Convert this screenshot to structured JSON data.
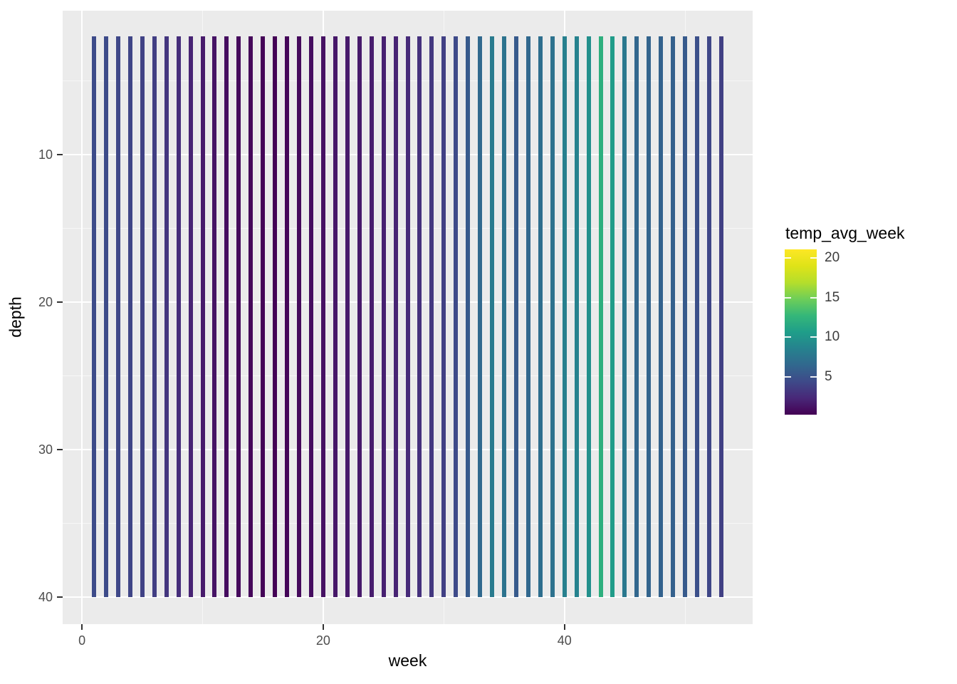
{
  "figure": {
    "background": "#ffffff",
    "panel_background": "#ebebeb",
    "gridline_color": "#ffffff",
    "tick_mark_color": "#333333",
    "tick_label_color": "#4d4d4d",
    "axis_title_color": "#000000"
  },
  "chart_data": {
    "type": "bar",
    "subtype": "vertical-segments-colored-by-value",
    "title": "",
    "xlabel": "week",
    "ylabel": "depth",
    "x_ticks": [
      0,
      20,
      40
    ],
    "x_minor_ticks": [
      10,
      30,
      50
    ],
    "y_ticks": [
      10,
      20,
      30,
      40
    ],
    "y_minor_ticks": [
      5,
      15,
      25,
      35
    ],
    "x_range": [
      -1.6,
      55.6
    ],
    "y_range": [
      0.24,
      41.84
    ],
    "y_reversed": true,
    "grid": "on",
    "segment_depth_top": 2,
    "segment_depth_bottom": 40,
    "weeks": [
      1,
      2,
      3,
      4,
      5,
      6,
      7,
      8,
      9,
      10,
      11,
      12,
      13,
      14,
      15,
      16,
      17,
      18,
      19,
      20,
      21,
      22,
      23,
      24,
      25,
      26,
      27,
      28,
      29,
      30,
      31,
      32,
      33,
      34,
      35,
      36,
      37,
      38,
      39,
      40,
      41,
      42,
      43,
      44,
      45,
      46,
      47,
      48,
      49,
      50,
      51,
      52,
      53
    ],
    "temp_avg_week": [
      4.5,
      4.5,
      4.3,
      4.1,
      3.9,
      3.7,
      3.2,
      2.7,
      2.1,
      1.6,
      1.2,
      0.9,
      0.7,
      0.6,
      0.4,
      0.3,
      0.5,
      0.7,
      0.9,
      1.1,
      1.4,
      1.6,
      1.6,
      1.7,
      1.9,
      2.1,
      2.5,
      2.9,
      3.3,
      3.8,
      4.4,
      5.5,
      6.6,
      8.0,
      7.4,
      5.5,
      6.5,
      7.0,
      7.3,
      8.4,
      8.6,
      9.6,
      12.1,
      10.5,
      7.8,
      6.4,
      6.2,
      6.1,
      6.0,
      5.5,
      4.8,
      4.2,
      3.8
    ],
    "color_scale": {
      "name": "viridis",
      "legend_title": "temp_avg_week",
      "legend_position": "right",
      "min": 0.24,
      "max": 21.1,
      "legend_ticks": [
        5,
        10,
        15,
        20
      ],
      "stops": [
        [
          0.0,
          "#440154"
        ],
        [
          0.1,
          "#482878"
        ],
        [
          0.2,
          "#3e4a89"
        ],
        [
          0.3,
          "#31688e"
        ],
        [
          0.4,
          "#26828e"
        ],
        [
          0.5,
          "#1f9e89"
        ],
        [
          0.6,
          "#35b779"
        ],
        [
          0.7,
          "#6ece58"
        ],
        [
          0.8,
          "#b5de2b"
        ],
        [
          0.9,
          "#dfe318"
        ],
        [
          1.0,
          "#fde725"
        ]
      ]
    }
  }
}
